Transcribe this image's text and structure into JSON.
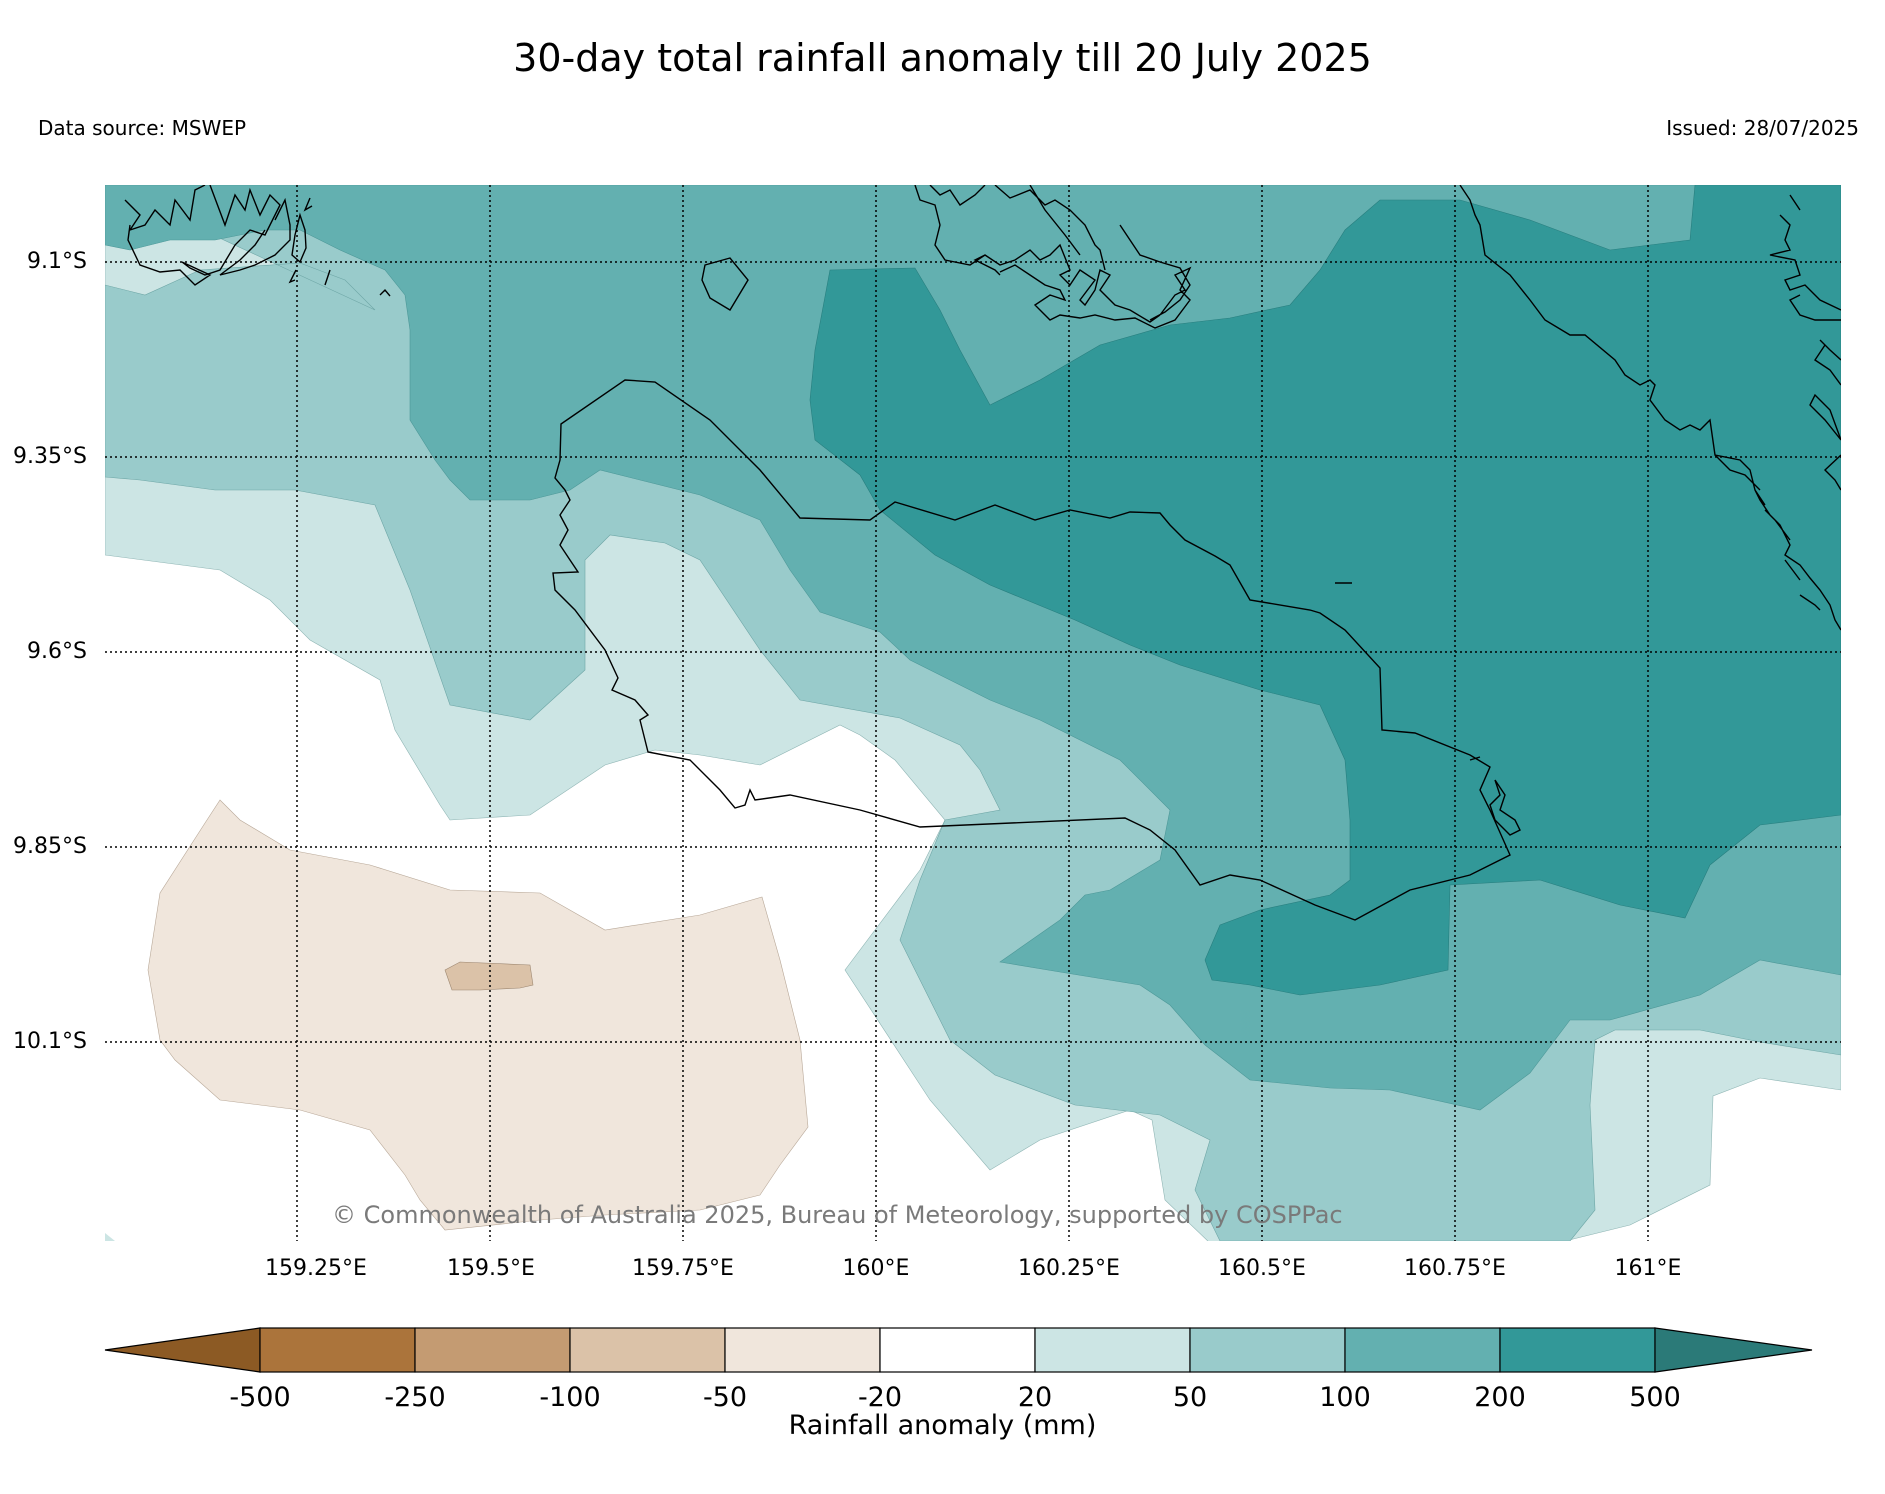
{
  "title": "30-day total rainfall anomaly till 20 July 2025",
  "data_source": "Data source: MSWEP",
  "issued": "Issued: 28/07/2025",
  "copyright": "© Commonwealth of Australia 2025, Bureau of Meteorology, supported by COSPPac",
  "lat_labels": [
    "9.1°S",
    "9.35°S",
    "9.6°S",
    "9.85°S",
    "10.1°S"
  ],
  "lon_labels": [
    "159.25°E",
    "159.5°E",
    "159.75°E",
    "160°E",
    "160.25°E",
    "160.5°E",
    "160.75°E",
    "161°E"
  ],
  "colorbar": {
    "label": "Rainfall anomaly (mm)",
    "ticks": [
      "-500",
      "-250",
      "-100",
      "-50",
      "-20",
      "20",
      "50",
      "100",
      "200",
      "500"
    ],
    "colors": [
      "#8c5a24",
      "#ab743b",
      "#c49b72",
      "#dbc2a8",
      "#f0e6dc",
      "#ffffff",
      "#cce5e4",
      "#99cbcb",
      "#63b0b0",
      "#329898",
      "#2b7a78"
    ]
  },
  "colors": {
    "land_outline": "#000000",
    "grid": "#000000"
  }
}
